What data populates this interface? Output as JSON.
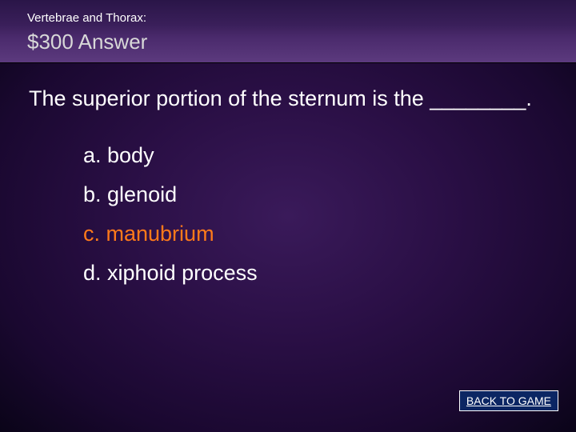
{
  "header": {
    "category": "Vertebrae and Thorax:",
    "value_answer": "$300 Answer"
  },
  "question": "The superior portion of the sternum is the ________.",
  "choices": {
    "a": "a. body",
    "b": "b. glenoid",
    "c": "c. manubrium",
    "d": "d. xiphoid process",
    "correct_index": 2
  },
  "back_button": {
    "label": "BACK TO GAME"
  },
  "styling": {
    "slide_width": 720,
    "slide_height": 540,
    "background_gradient": [
      "#3a1a5a",
      "#2a0f45",
      "#1a0830",
      "#0a0418"
    ],
    "header_gradient": [
      "#2a1548",
      "#3a1f5a",
      "#4a2a6c",
      "#5c3a7e"
    ],
    "category_fontsize": 15,
    "category_color": "#ffffff",
    "value_fontsize": 26,
    "value_color": "#d8d8d8",
    "question_fontsize": 27,
    "question_color": "#ffffff",
    "choice_fontsize": 27,
    "choice_color": "#ffffff",
    "correct_color": "#ff7a1a",
    "back_btn_bg": "#0b2663",
    "back_btn_color": "#ffffff",
    "back_btn_border": "#ffffff",
    "back_btn_fontsize": 14,
    "font_family": "Arial"
  }
}
